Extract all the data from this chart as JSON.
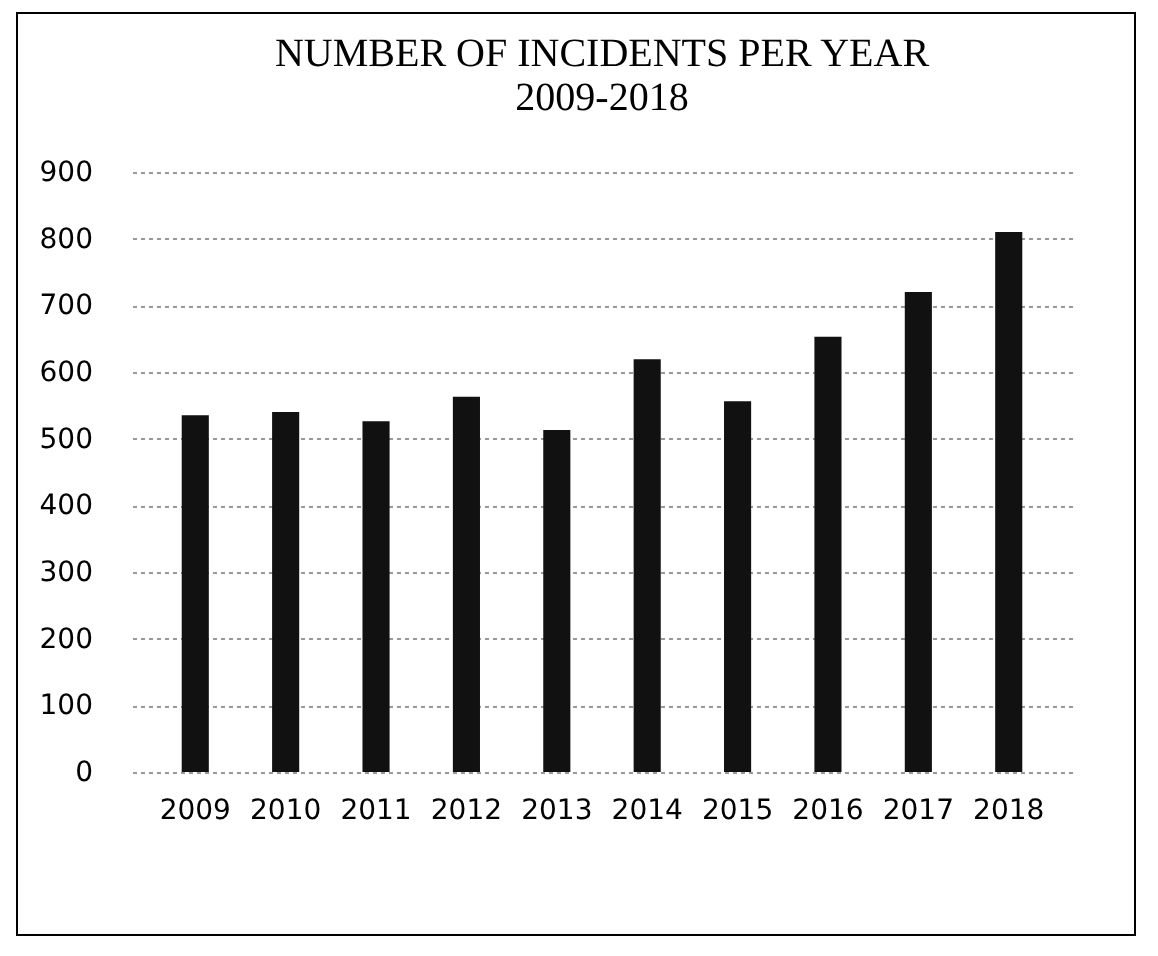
{
  "chart_data": {
    "type": "bar",
    "title": [
      "NUMBER OF INCIDENTS PER YEAR",
      "2009-2018"
    ],
    "categories": [
      "2009",
      "2010",
      "2011",
      "2012",
      "2013",
      "2014",
      "2015",
      "2016",
      "2017",
      "2018"
    ],
    "values": [
      535,
      540,
      526,
      563,
      513,
      619,
      556,
      653,
      720,
      810
    ],
    "color": "#111111",
    "ylim": [
      0,
      900
    ],
    "yticks": [
      0,
      100,
      200,
      300,
      400,
      500,
      600,
      700,
      800,
      900
    ],
    "grid": "y"
  }
}
